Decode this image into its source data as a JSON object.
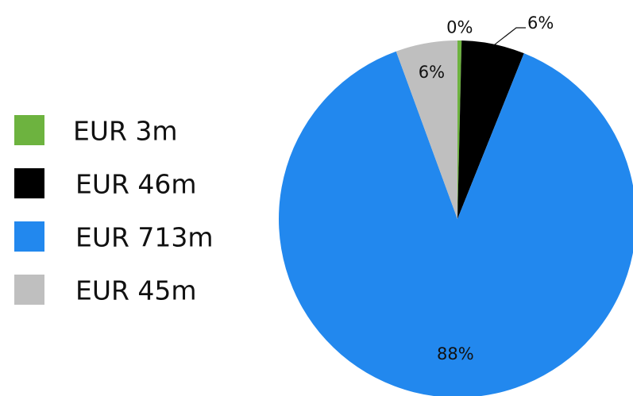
{
  "chart_data": {
    "type": "pie",
    "categories": [
      "EUR 3m",
      "EUR 46m",
      "EUR 713m",
      "EUR 45m"
    ],
    "values": [
      0.37,
      5.7,
      88.35,
      5.58
    ],
    "value_labels": [
      "0%",
      "6%",
      "88%",
      "6%"
    ],
    "colors": [
      "#6db33f",
      "#000000",
      "#2288ee",
      "#bfbfbf"
    ],
    "legend": "left"
  }
}
